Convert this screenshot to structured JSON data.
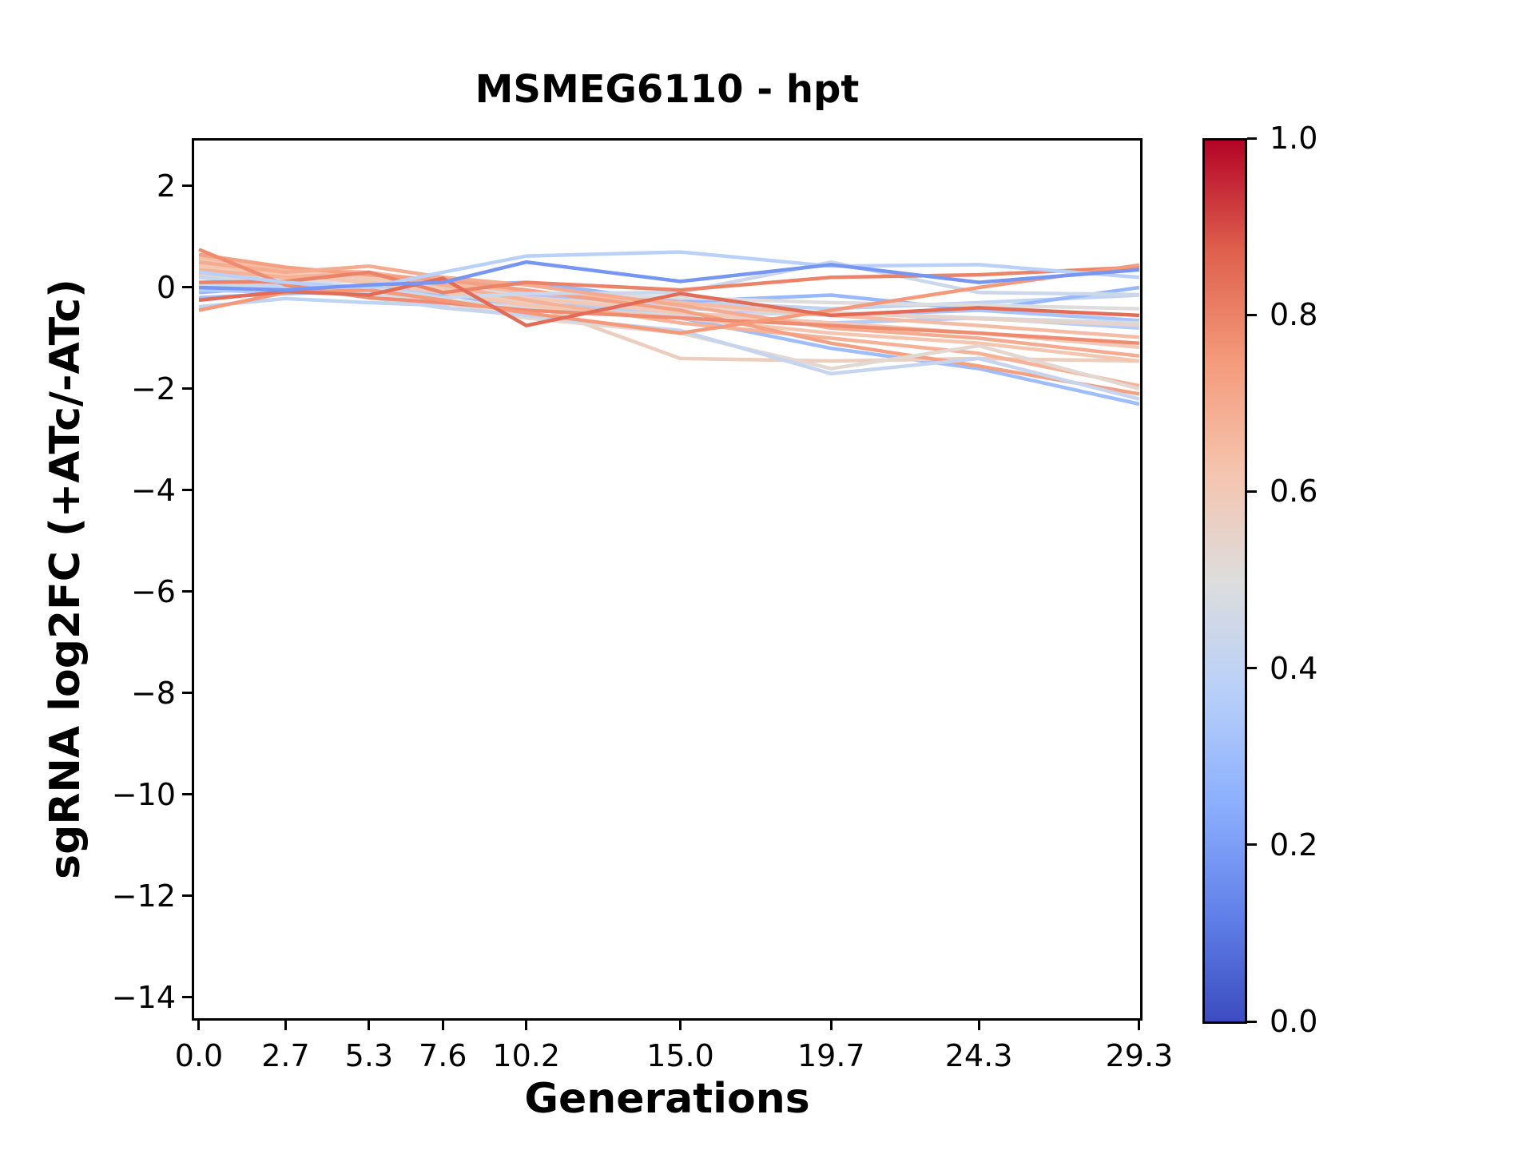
{
  "title": "MSMEG6110 - hpt",
  "xlabel": "Generations",
  "ylabel": "sgRNA log2FC (+ATc/-ATc)",
  "axes": {
    "x_tick_labels": [
      "0.0",
      "2.7",
      "5.3",
      "7.6",
      "10.2",
      "15.0",
      "19.7",
      "24.3",
      "29.3"
    ],
    "x_tick_values": [
      0.0,
      2.7,
      5.3,
      7.6,
      10.2,
      15.0,
      19.7,
      24.3,
      29.3
    ],
    "y_tick_labels": [
      "2",
      "0",
      "−2",
      "−4",
      "−6",
      "−8",
      "−10",
      "−12",
      "−14"
    ],
    "y_tick_values": [
      2,
      0,
      -2,
      -4,
      -6,
      -8,
      -10,
      -12,
      -14
    ],
    "spine_color": "#000000",
    "background": "#ffffff"
  },
  "colorbar": {
    "tick_labels": [
      "1.0",
      "0.8",
      "0.6",
      "0.4",
      "0.2",
      "0.0"
    ],
    "tick_values": [
      1.0,
      0.8,
      0.6,
      0.4,
      0.2,
      0.0
    ],
    "cmap_name": "coolwarm",
    "gradient_stops": [
      "#3b4cc0",
      "#6282ea",
      "#8db0fe",
      "#b8d0f9",
      "#dddddd",
      "#f5c4ad",
      "#f49a7b",
      "#de604d",
      "#b40426"
    ]
  },
  "chart_data": {
    "type": "line",
    "title": "MSMEG6110 - hpt",
    "xlabel": "Generations",
    "ylabel": "sgRNA log2FC (+ATc/-ATc)",
    "xlim": [
      -0.224,
      29.402
    ],
    "ylim": [
      -14.46,
      2.945
    ],
    "grid": false,
    "legend": "colorbar 0.0-1.0 coolwarm",
    "line_width": 4.5,
    "x": [
      0.0,
      2.7,
      5.3,
      7.6,
      10.2,
      15.0,
      19.7,
      24.3,
      29.3
    ],
    "series": [
      {
        "color_value": 0.4,
        "values": [
          -0.38,
          -0.22,
          -0.3,
          -0.35,
          -0.2,
          -0.28,
          -0.42,
          -0.3,
          -0.15
        ]
      },
      {
        "color_value": 0.3,
        "values": [
          -0.2,
          -0.12,
          -0.08,
          -0.15,
          -0.35,
          -0.6,
          -1.2,
          -1.6,
          -2.3
        ]
      },
      {
        "color_value": 0.28,
        "values": [
          -0.1,
          0.02,
          -0.05,
          0.05,
          0.1,
          -0.28,
          -0.15,
          -0.45,
          0.0
        ]
      },
      {
        "color_value": 0.33,
        "values": [
          0.1,
          0.05,
          -0.1,
          0.0,
          -0.15,
          -0.4,
          -0.55,
          -0.45,
          -0.65
        ]
      },
      {
        "color_value": 0.36,
        "values": [
          -0.05,
          -0.1,
          0.0,
          -0.1,
          -0.3,
          -0.5,
          -0.7,
          -0.6,
          -0.8
        ]
      },
      {
        "color_value": 0.47,
        "values": [
          0.05,
          0.0,
          -0.12,
          -0.25,
          -0.4,
          -0.55,
          -0.5,
          -0.6,
          -0.7
        ]
      },
      {
        "color_value": 0.55,
        "values": [
          0.25,
          0.2,
          0.12,
          0.05,
          -0.2,
          -0.4,
          -0.5,
          -0.62,
          -0.74
        ]
      },
      {
        "color_value": 0.5,
        "values": [
          0.3,
          0.15,
          0.1,
          0.0,
          -0.1,
          -0.2,
          -0.3,
          -0.35,
          -0.42
        ]
      },
      {
        "color_value": 0.58,
        "values": [
          0.4,
          0.22,
          0.15,
          -0.05,
          -0.3,
          -1.4,
          -1.45,
          -1.4,
          -1.45
        ]
      },
      {
        "color_value": 0.62,
        "values": [
          0.45,
          0.25,
          0.1,
          -0.1,
          -0.35,
          -0.6,
          -0.9,
          -1.1,
          -1.45
        ]
      },
      {
        "color_value": 0.6,
        "values": [
          0.55,
          0.3,
          0.2,
          0.0,
          -0.2,
          -0.5,
          -0.7,
          -0.9,
          -1.18
        ]
      },
      {
        "color_value": 0.65,
        "values": [
          0.6,
          0.35,
          0.3,
          0.1,
          -0.1,
          -0.3,
          -0.55,
          -0.75,
          -0.98
        ]
      },
      {
        "color_value": 0.68,
        "values": [
          0.35,
          0.2,
          0.28,
          0.05,
          -0.25,
          -0.7,
          -1.0,
          -1.3,
          -1.94
        ]
      },
      {
        "color_value": 0.73,
        "values": [
          0.65,
          0.4,
          0.25,
          0.15,
          -0.05,
          -0.45,
          -1.1,
          -1.55,
          -2.1
        ]
      },
      {
        "color_value": 0.53,
        "values": [
          0.2,
          0.1,
          0.0,
          -0.3,
          -0.6,
          -0.9,
          -1.6,
          -1.15,
          -2.0
        ]
      },
      {
        "color_value": 0.42,
        "values": [
          0.2,
          0.0,
          -0.2,
          -0.4,
          -0.55,
          -0.85,
          -1.7,
          -1.4,
          -2.2
        ]
      },
      {
        "color_value": 0.44,
        "values": [
          0.1,
          -0.05,
          0.0,
          -0.2,
          -0.12,
          -0.1,
          0.5,
          -0.1,
          -0.14
        ]
      },
      {
        "color_value": 0.7,
        "values": [
          0.5,
          0.3,
          0.42,
          0.2,
          0.05,
          -0.35,
          -0.8,
          -1.0,
          -1.35
        ]
      },
      {
        "color_value": 0.8,
        "values": [
          0.1,
          0.12,
          0.3,
          -0.1,
          0.1,
          -0.05,
          0.2,
          0.25,
          0.4
        ]
      },
      {
        "color_value": 0.78,
        "values": [
          0.75,
          0.05,
          -0.2,
          -0.3,
          -0.45,
          -0.6,
          -0.75,
          -0.9,
          -1.1
        ]
      },
      {
        "color_value": 0.75,
        "values": [
          -0.45,
          -0.1,
          -0.05,
          -0.25,
          -0.5,
          -0.9,
          -0.45,
          0.0,
          0.44
        ]
      },
      {
        "color_value": 0.85,
        "values": [
          -0.25,
          -0.08,
          -0.15,
          0.18,
          -0.75,
          -0.12,
          -0.55,
          -0.4,
          -0.55
        ]
      },
      {
        "color_value": 0.38,
        "values": [
          0.3,
          0.1,
          0.0,
          0.3,
          0.62,
          0.7,
          0.42,
          0.45,
          0.2
        ]
      },
      {
        "color_value": 0.18,
        "values": [
          0.0,
          -0.05,
          0.05,
          0.1,
          0.5,
          0.12,
          0.45,
          0.1,
          0.35
        ]
      }
    ]
  }
}
